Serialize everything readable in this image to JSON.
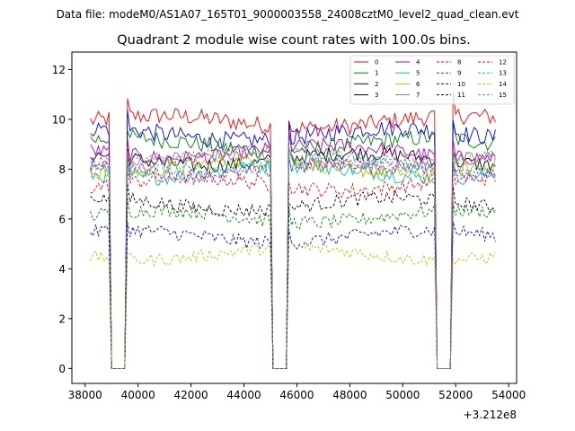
{
  "header": {
    "data_file": "Data file: modeM0/AS1A07_165T01_9000003558_24008cztM0_level2_quad_clean.evt"
  },
  "chart_data": {
    "type": "line",
    "title": "Quadrant 2 module wise count rates with 100.0s bins.",
    "xlabel": "",
    "ylabel": "",
    "x_offset_label": "+3.212e8",
    "xlim": [
      37500,
      54300
    ],
    "ylim": [
      -0.6,
      12.7
    ],
    "x_ticks": [
      38000,
      40000,
      42000,
      44000,
      46000,
      48000,
      50000,
      52000,
      54000
    ],
    "y_ticks": [
      0,
      2,
      4,
      6,
      8,
      10,
      12
    ],
    "x_tick_labels": [
      "38000",
      "40000",
      "42000",
      "44000",
      "46000",
      "48000",
      "50000",
      "52000",
      "54000"
    ],
    "y_tick_labels": [
      "0",
      "2",
      "4",
      "6",
      "8",
      "10",
      "12"
    ],
    "bin_width_s": 100,
    "segments": [
      {
        "start": 38200,
        "end": 38900
      },
      {
        "start": 39600,
        "end": 45000
      },
      {
        "start": 45700,
        "end": 51200
      },
      {
        "start": 51900,
        "end": 53500
      }
    ],
    "gaps": [
      {
        "start": 39000,
        "end": 39500
      },
      {
        "start": 45100,
        "end": 45600
      },
      {
        "start": 51300,
        "end": 51800
      }
    ],
    "legend_position": "top-right",
    "series": [
      {
        "name": "0",
        "color": "#ff0000",
        "dashed": false,
        "level": 9.9,
        "variation": 0.35
      },
      {
        "name": "1",
        "color": "#008000",
        "dashed": false,
        "level": 9.0,
        "variation": 0.35
      },
      {
        "name": "2",
        "color": "#0000ff",
        "dashed": false,
        "level": 9.4,
        "variation": 0.35
      },
      {
        "name": "3",
        "color": "#000000",
        "dashed": false,
        "level": 8.4,
        "variation": 0.3
      },
      {
        "name": "4",
        "color": "#bf00bf",
        "dashed": false,
        "level": 8.7,
        "variation": 0.3
      },
      {
        "name": "5",
        "color": "#00bfbf",
        "dashed": false,
        "level": 7.9,
        "variation": 0.3
      },
      {
        "name": "6",
        "color": "#bfbf00",
        "dashed": false,
        "level": 8.1,
        "variation": 0.3
      },
      {
        "name": "7",
        "color": "#808080",
        "dashed": false,
        "level": 8.3,
        "variation": 0.3
      },
      {
        "name": "8",
        "color": "#ff0000",
        "dashed": true,
        "level": 7.4,
        "variation": 0.3
      },
      {
        "name": "9",
        "color": "#008000",
        "dashed": true,
        "level": 6.1,
        "variation": 0.28
      },
      {
        "name": "10",
        "color": "#0000ff",
        "dashed": true,
        "level": 5.3,
        "variation": 0.28
      },
      {
        "name": "11",
        "color": "#000000",
        "dashed": true,
        "level": 6.6,
        "variation": 0.28
      },
      {
        "name": "12",
        "color": "#bf00bf",
        "dashed": true,
        "level": 8.0,
        "variation": 0.28
      },
      {
        "name": "13",
        "color": "#00bfbf",
        "dashed": true,
        "level": 8.2,
        "variation": 0.28
      },
      {
        "name": "14",
        "color": "#bfbf00",
        "dashed": true,
        "level": 4.6,
        "variation": 0.25
      },
      {
        "name": "15",
        "color": "#808080",
        "dashed": true,
        "level": 8.5,
        "variation": 0.28
      }
    ]
  }
}
